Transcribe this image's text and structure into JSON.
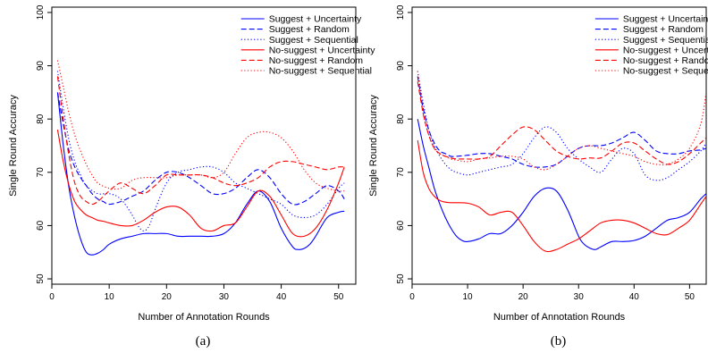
{
  "chart_data": [
    {
      "type": "line",
      "caption": "(a)",
      "xlabel": "Number of Annotation Rounds",
      "ylabel": "Single Round Accuracy",
      "xlim": [
        0,
        53
      ],
      "ylim": [
        49,
        101
      ],
      "xticks": [
        "0",
        "10",
        "20",
        "30",
        "40",
        "50"
      ],
      "yticks": [
        "50",
        "60",
        "70",
        "80",
        "90",
        "100"
      ],
      "legend_position": "top-right",
      "series": [
        {
          "name": "Suggest + Uncertainty",
          "color": "#0000ff",
          "dash": "solid",
          "x": [
            1,
            2,
            3,
            4,
            5,
            6,
            7,
            8,
            9,
            10,
            12,
            14,
            16,
            18,
            20,
            22,
            24,
            26,
            28,
            30,
            32,
            34,
            36,
            38,
            40,
            42,
            43,
            44,
            45,
            46,
            48,
            50,
            51
          ],
          "y": [
            85,
            75,
            67,
            61.5,
            57.5,
            55,
            54.5,
            54.8,
            55.5,
            56.5,
            57.5,
            58,
            58.5,
            58.5,
            58.5,
            58,
            58,
            58,
            58,
            58.5,
            60.5,
            64,
            66.5,
            64.5,
            59.5,
            56,
            55.5,
            55.7,
            56.5,
            58,
            61.5,
            62.5,
            62.7
          ]
        },
        {
          "name": "Suggest + Random",
          "color": "#0000ff",
          "dash": "dashed",
          "x": [
            1,
            2,
            3,
            4,
            5,
            6,
            7,
            8,
            9,
            10,
            12,
            14,
            16,
            18,
            20,
            22,
            24,
            26,
            28,
            30,
            32,
            34,
            36,
            38,
            40,
            42,
            44,
            46,
            48,
            50,
            51
          ],
          "y": [
            85,
            79,
            74,
            71,
            69,
            67.5,
            66,
            65,
            64.5,
            64,
            64.5,
            65.5,
            66.5,
            68.5,
            70,
            70,
            69,
            67.5,
            66,
            66,
            67,
            69,
            70.5,
            69,
            66,
            64,
            64.5,
            66,
            67.5,
            66.5,
            65
          ]
        },
        {
          "name": "Suggest + Sequential",
          "color": "#0000ff",
          "dash": "dotted",
          "x": [
            1,
            2,
            3,
            4,
            5,
            6,
            8,
            10,
            12,
            14,
            15,
            16,
            17,
            18,
            20,
            22,
            24,
            26,
            28,
            30,
            32,
            34,
            36,
            38,
            40,
            42,
            44,
            46,
            48,
            50,
            51
          ],
          "y": [
            89,
            82,
            76,
            72,
            69.5,
            67.5,
            66,
            66,
            65,
            62,
            60,
            59,
            60,
            63,
            68,
            70,
            70.5,
            71,
            71,
            70,
            68,
            67,
            66,
            65,
            64,
            62,
            61.5,
            62,
            64,
            67,
            68
          ]
        },
        {
          "name": "No-suggest + Uncertainty",
          "color": "#ff0000",
          "dash": "solid",
          "x": [
            1,
            2,
            3,
            4,
            5,
            6,
            7,
            8,
            9,
            10,
            12,
            14,
            16,
            18,
            20,
            22,
            24,
            26,
            28,
            30,
            32,
            34,
            36,
            38,
            40,
            42,
            44,
            46,
            48,
            50,
            51
          ],
          "y": [
            78,
            72,
            67.5,
            64.5,
            63,
            62,
            61.5,
            61,
            60.8,
            60.5,
            60,
            60,
            61,
            62.5,
            63.5,
            63.5,
            62,
            59.5,
            59,
            60,
            60.5,
            63.5,
            66.5,
            65.5,
            62,
            58.5,
            58,
            59.5,
            63,
            68,
            71
          ]
        },
        {
          "name": "No-suggest + Random",
          "color": "#ff0000",
          "dash": "dashed",
          "x": [
            1,
            2,
            3,
            4,
            5,
            6,
            7,
            8,
            9,
            10,
            12,
            14,
            16,
            18,
            20,
            22,
            24,
            26,
            28,
            30,
            32,
            34,
            36,
            38,
            40,
            42,
            44,
            46,
            48,
            50,
            51
          ],
          "y": [
            88,
            80,
            73,
            68,
            65.5,
            64.5,
            64,
            64.5,
            65.5,
            66.5,
            68,
            67,
            66,
            67.5,
            69.5,
            69.5,
            69.5,
            69.5,
            69,
            68,
            67.5,
            68,
            69,
            71,
            72,
            72,
            71.5,
            71,
            70.5,
            71,
            71
          ]
        },
        {
          "name": "No-suggest + Sequential",
          "color": "#ff0000",
          "dash": "dotted",
          "x": [
            1,
            2,
            3,
            4,
            5,
            6,
            7,
            8,
            10,
            12,
            14,
            16,
            18,
            20,
            22,
            24,
            26,
            28,
            30,
            32,
            34,
            36,
            38,
            40,
            42,
            44,
            46,
            48,
            50,
            51
          ],
          "y": [
            91,
            86,
            81,
            77,
            74,
            71.5,
            69.5,
            68,
            67,
            67,
            68.5,
            69,
            69,
            69,
            69.5,
            69.5,
            69.5,
            69,
            70,
            73.5,
            76.5,
            77.5,
            77.5,
            76.5,
            74,
            70.5,
            68,
            67,
            66.5,
            66.5
          ]
        }
      ]
    },
    {
      "type": "line",
      "caption": "(b)",
      "xlabel": "Number of Annotation Rounds",
      "ylabel": "Single Round Accuracy",
      "xlim": [
        0,
        53
      ],
      "ylim": [
        49,
        101
      ],
      "xticks": [
        "0",
        "10",
        "20",
        "30",
        "40",
        "50"
      ],
      "yticks": [
        "50",
        "60",
        "70",
        "80",
        "90",
        "100"
      ],
      "legend_position": "top-right",
      "series": [
        {
          "name": "Suggest + Uncertainty",
          "color": "#0000ff",
          "dash": "solid",
          "x": [
            1,
            2,
            3,
            4,
            5,
            6,
            7,
            8,
            9,
            10,
            12,
            14,
            16,
            18,
            20,
            22,
            24,
            26,
            28,
            30,
            31,
            32,
            33,
            34,
            36,
            38,
            40,
            42,
            44,
            46,
            48,
            50,
            52,
            53
          ],
          "y": [
            80,
            75,
            71,
            67,
            64,
            61.5,
            59.5,
            58,
            57.2,
            57,
            57.5,
            58.5,
            58.5,
            60,
            62.5,
            65.5,
            67,
            66.5,
            63,
            58,
            56.5,
            55.8,
            55.5,
            56,
            57,
            57,
            57.2,
            58,
            59.5,
            61,
            61.5,
            62.5,
            65,
            66
          ]
        },
        {
          "name": "Suggest + Random",
          "color": "#0000ff",
          "dash": "dashed",
          "x": [
            1,
            2,
            3,
            4,
            5,
            6,
            7,
            8,
            10,
            12,
            14,
            16,
            18,
            20,
            22,
            24,
            26,
            28,
            30,
            32,
            34,
            36,
            38,
            40,
            42,
            44,
            46,
            48,
            50,
            52,
            53
          ],
          "y": [
            88,
            82,
            78,
            75.5,
            74,
            73.5,
            73,
            73,
            73.2,
            73.5,
            73.5,
            73,
            72.5,
            71.5,
            71,
            71,
            71.5,
            73,
            74.5,
            75,
            75,
            75.5,
            76.5,
            77.5,
            76,
            74,
            73.5,
            73.5,
            74,
            74.2,
            74.5
          ]
        },
        {
          "name": "Suggest + Sequential",
          "color": "#0000ff",
          "dash": "dotted",
          "x": [
            1,
            2,
            3,
            4,
            5,
            6,
            7,
            8,
            10,
            12,
            14,
            16,
            18,
            20,
            22,
            24,
            26,
            28,
            30,
            32,
            34,
            36,
            38,
            40,
            42,
            44,
            46,
            48,
            50,
            52,
            53
          ],
          "y": [
            89,
            83,
            78,
            75,
            73,
            71.5,
            70.5,
            70,
            69.5,
            70,
            70.5,
            71,
            71.5,
            73.5,
            76.5,
            78.5,
            77.5,
            74.5,
            72.5,
            71,
            70,
            72.5,
            74.5,
            73.5,
            69.5,
            68.5,
            69,
            70.5,
            72,
            74,
            75.5
          ]
        },
        {
          "name": "No-suggest + Uncertainty",
          "color": "#ff0000",
          "dash": "solid",
          "x": [
            1,
            2,
            3,
            4,
            5,
            6,
            7,
            8,
            10,
            12,
            14,
            16,
            18,
            20,
            22,
            24,
            26,
            28,
            30,
            32,
            34,
            36,
            38,
            40,
            42,
            44,
            46,
            48,
            50,
            52,
            53
          ],
          "y": [
            76,
            70,
            67,
            65.5,
            64.7,
            64.4,
            64.3,
            64.3,
            64.2,
            63.5,
            62,
            62.5,
            62.5,
            60,
            57,
            55.2,
            55.5,
            56.5,
            57.5,
            59,
            60.5,
            61,
            61,
            60.5,
            59.5,
            58.5,
            58.3,
            59.5,
            61,
            64,
            65.5
          ]
        },
        {
          "name": "No-suggest + Random",
          "color": "#ff0000",
          "dash": "dashed",
          "x": [
            1,
            2,
            3,
            4,
            5,
            6,
            7,
            8,
            10,
            12,
            14,
            16,
            18,
            20,
            22,
            24,
            26,
            28,
            30,
            32,
            34,
            36,
            38,
            40,
            42,
            44,
            46,
            48,
            50,
            52,
            53
          ],
          "y": [
            87,
            81,
            77,
            74.5,
            73.5,
            73,
            72.7,
            72.5,
            72.5,
            72.5,
            73,
            75,
            77,
            78.5,
            78,
            76,
            74,
            73,
            72.5,
            72.7,
            72.7,
            74,
            75.5,
            75.5,
            74,
            72.5,
            71.5,
            72,
            73.5,
            75.5,
            76.5
          ]
        },
        {
          "name": "No-suggest + Sequential",
          "color": "#ff0000",
          "dash": "dotted",
          "x": [
            1,
            2,
            3,
            4,
            5,
            6,
            7,
            8,
            10,
            12,
            14,
            16,
            18,
            20,
            22,
            24,
            26,
            28,
            30,
            32,
            34,
            36,
            38,
            40,
            42,
            44,
            46,
            48,
            50,
            52,
            53
          ],
          "y": [
            89,
            81,
            77,
            74.5,
            73.5,
            73,
            72.5,
            72.3,
            72,
            72.5,
            72.7,
            73,
            73,
            72.5,
            71,
            70.5,
            71.5,
            73,
            74.5,
            75,
            74.5,
            74,
            73.5,
            73,
            72,
            71.5,
            71.5,
            72.5,
            74.5,
            79,
            85
          ]
        }
      ]
    }
  ]
}
